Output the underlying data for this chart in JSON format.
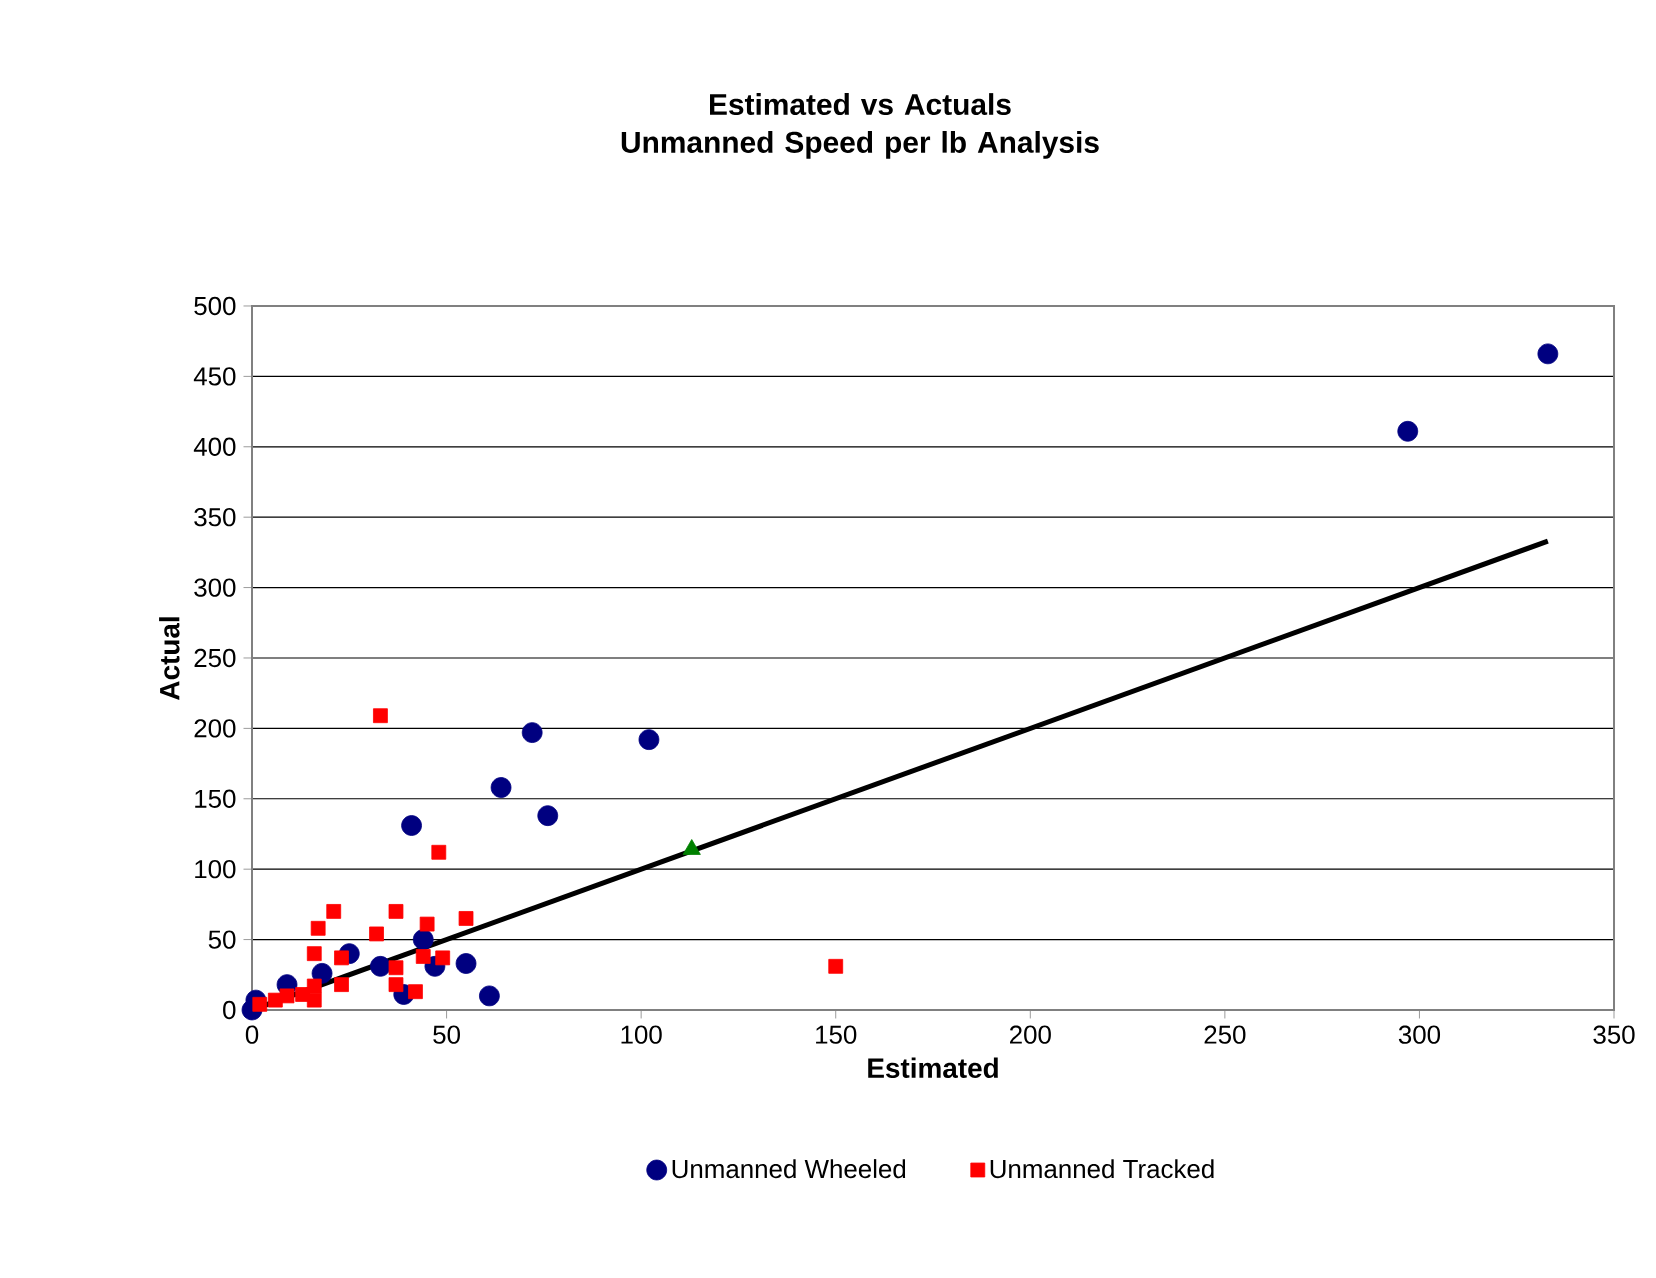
{
  "chart_data": {
    "type": "scatter",
    "title": "Estimated vs Actuals\nUnmanned Speed per lb Analysis",
    "xlabel": "Estimated",
    "ylabel": "Actual",
    "xlim": [
      0,
      350
    ],
    "xticks": [
      0,
      50,
      100,
      150,
      200,
      250,
      300,
      350
    ],
    "ylim": [
      0,
      500
    ],
    "yticks": [
      0,
      50,
      100,
      150,
      200,
      250,
      300,
      350,
      400,
      450,
      500
    ],
    "grid": "y",
    "legend": "bottom",
    "series": [
      {
        "name": "Unmanned Wheeled",
        "color": "#000080",
        "marker": "circle",
        "x": [
          0,
          1,
          9,
          18,
          25,
          33,
          39,
          41,
          44,
          47,
          55,
          61,
          64,
          72,
          76,
          102,
          297,
          333
        ],
        "values": [
          0,
          7,
          18,
          26,
          40,
          31,
          11,
          131,
          50,
          31,
          33,
          10,
          158,
          197,
          138,
          192,
          411,
          466
        ]
      },
      {
        "name": "Unmanned Tracked",
        "color": "#ff0000",
        "marker": "square",
        "x": [
          2,
          6,
          9,
          13,
          16,
          16,
          16,
          17,
          21,
          23,
          23,
          32,
          33,
          37,
          37,
          37,
          42,
          44,
          45,
          48,
          49,
          55,
          150
        ],
        "values": [
          4,
          7,
          10,
          11,
          7,
          17,
          40,
          58,
          70,
          37,
          18,
          54,
          209,
          70,
          30,
          18,
          13,
          38,
          61,
          112,
          37,
          65,
          31
        ]
      },
      {
        "color": "#008000",
        "marker": "triangle",
        "x": [
          113
        ],
        "values": [
          114
        ]
      },
      {
        "type": "line",
        "color": "#000000",
        "marker": "none",
        "x": [
          0,
          333
        ],
        "values": [
          0,
          333
        ]
      }
    ]
  }
}
